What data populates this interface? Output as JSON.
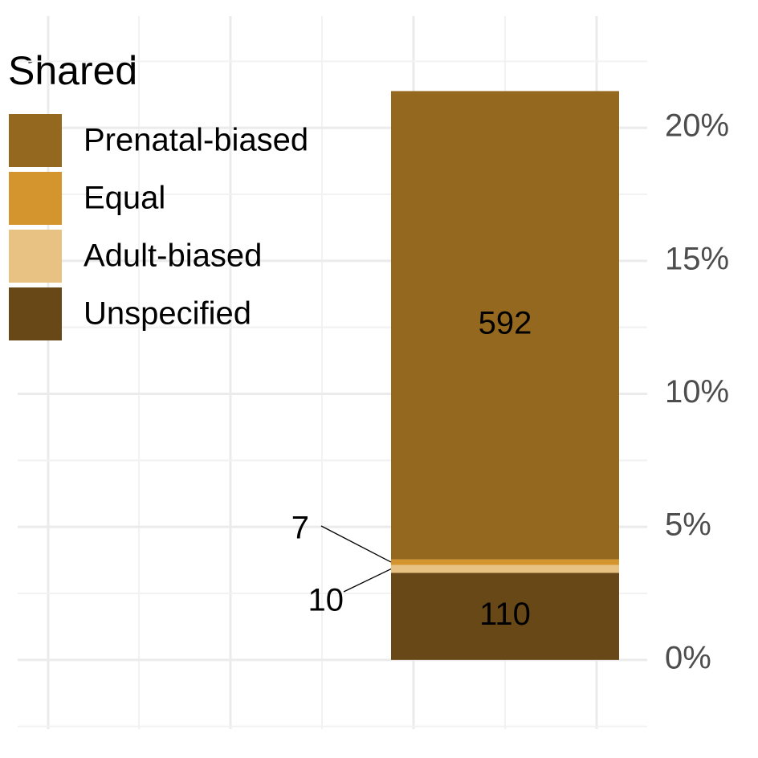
{
  "chart_data": {
    "type": "stacked-bar",
    "legend_title": "Shared",
    "series": [
      {
        "name": "Prenatal-biased",
        "color": "#94681f",
        "values": [
          17.6
        ],
        "count": 592
      },
      {
        "name": "Equal",
        "color": "#d4952e",
        "values": [
          0.21
        ],
        "count": 7
      },
      {
        "name": "Adult-biased",
        "color": "#e8c283",
        "values": [
          0.3
        ],
        "count": 10
      },
      {
        "name": "Unspecified",
        "color": "#684817",
        "values": [
          3.27
        ],
        "count": 110
      }
    ],
    "ylim": [
      -2.6,
      24.2
    ],
    "yticks": [
      {
        "value": 0,
        "label": "0%"
      },
      {
        "value": 5,
        "label": "5%"
      },
      {
        "value": 10,
        "label": "10%"
      },
      {
        "value": 15,
        "label": "15%"
      },
      {
        "value": 20,
        "label": "20%"
      }
    ],
    "grid": true,
    "legend": "top-left"
  }
}
